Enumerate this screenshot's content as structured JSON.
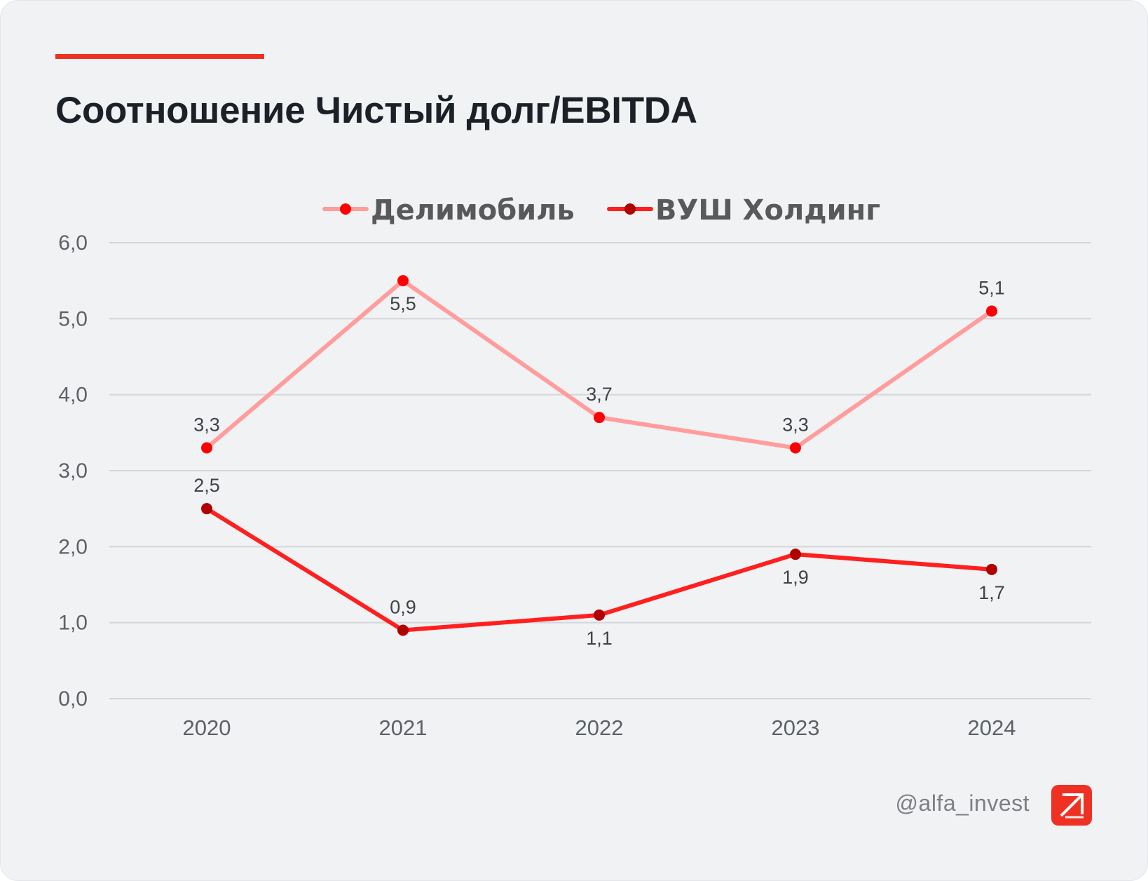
{
  "header": {
    "title": "Соотношение Чистый долг/EBITDA"
  },
  "footer": {
    "handle": "@alfa_invest",
    "logo_icon": "alfa-arrow-icon"
  },
  "colors": {
    "accent": "#ef3124",
    "series_delimobil_line": "#ff9d9d",
    "series_delimobil_marker": "#ff0000",
    "series_vush_line": "#ff1f1f",
    "series_vush_marker": "#b00000"
  },
  "chart_data": {
    "type": "line",
    "title": "",
    "xlabel": "",
    "ylabel": "",
    "x": [
      "2020",
      "2021",
      "2022",
      "2023",
      "2024"
    ],
    "ylim": [
      0,
      6
    ],
    "yticks": [
      "0,0",
      "1,0",
      "2,0",
      "3,0",
      "4,0",
      "5,0",
      "6,0"
    ],
    "grid": true,
    "legend_position": "top",
    "series": [
      {
        "name": "Делимобиль",
        "values": [
          3.3,
          5.5,
          3.7,
          3.3,
          5.1
        ],
        "labels": [
          "3,3",
          "5,5",
          "3,7",
          "3,3",
          "5,1"
        ],
        "label_positions": [
          "above",
          "below",
          "above",
          "above",
          "above"
        ],
        "line_color": "#ff9d9d",
        "marker_color": "#ff0000"
      },
      {
        "name": "ВУШ Холдинг",
        "values": [
          2.5,
          0.9,
          1.1,
          1.9,
          1.7
        ],
        "labels": [
          "2,5",
          "0,9",
          "1,1",
          "1,9",
          "1,7"
        ],
        "label_positions": [
          "above",
          "above",
          "below",
          "below",
          "below"
        ],
        "line_color": "#ff1f1f",
        "marker_color": "#b00000"
      }
    ]
  }
}
